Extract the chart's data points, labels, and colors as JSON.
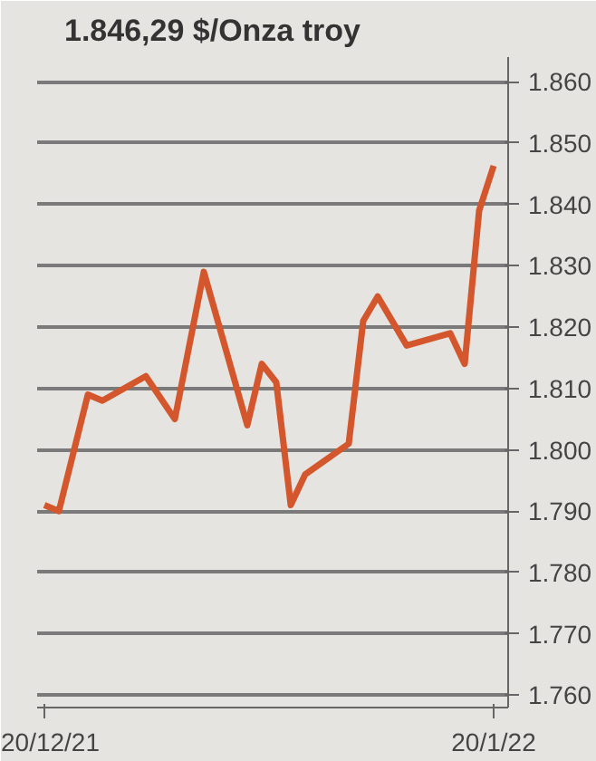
{
  "chart_data": {
    "type": "line",
    "title": "1.846,29 $/Onza troy",
    "x": [
      "2021-12-20",
      "2021-12-21",
      "2021-12-23",
      "2021-12-24",
      "2021-12-27",
      "2021-12-29",
      "2021-12-31",
      "2022-01-03",
      "2022-01-04",
      "2022-01-05",
      "2022-01-06",
      "2022-01-07",
      "2022-01-10",
      "2022-01-11",
      "2022-01-12",
      "2022-01-14",
      "2022-01-17",
      "2022-01-18",
      "2022-01-19",
      "2022-01-20"
    ],
    "series": [
      {
        "color": "#d4562c",
        "values": [
          1791,
          1790,
          1809,
          1808,
          1812,
          1805,
          1829,
          1804,
          1814,
          1811,
          1791,
          1796,
          1801,
          1821,
          1825,
          1817,
          1819,
          1814,
          1839,
          1846.29
        ]
      }
    ],
    "xlim": [
      "2021-12-19T12:00",
      "2022-01-21"
    ],
    "xticks": [
      {
        "value": "2021-12-20",
        "label": "20/12/21"
      },
      {
        "value": "2022-01-20",
        "label": "20/1/22"
      }
    ],
    "ylim": [
      1758,
      1864
    ],
    "yticks": [
      {
        "value": 1760,
        "label": "1.760"
      },
      {
        "value": 1770,
        "label": "1.770"
      },
      {
        "value": 1780,
        "label": "1.780"
      },
      {
        "value": 1790,
        "label": "1.790"
      },
      {
        "value": 1800,
        "label": "1.800"
      },
      {
        "value": 1810,
        "label": "1.810"
      },
      {
        "value": 1820,
        "label": "1.820"
      },
      {
        "value": 1830,
        "label": "1.830"
      },
      {
        "value": 1840,
        "label": "1.840"
      },
      {
        "value": 1850,
        "label": "1.850"
      },
      {
        "value": 1860,
        "label": "1.860"
      }
    ],
    "grid": "y",
    "line_style": "solid"
  }
}
